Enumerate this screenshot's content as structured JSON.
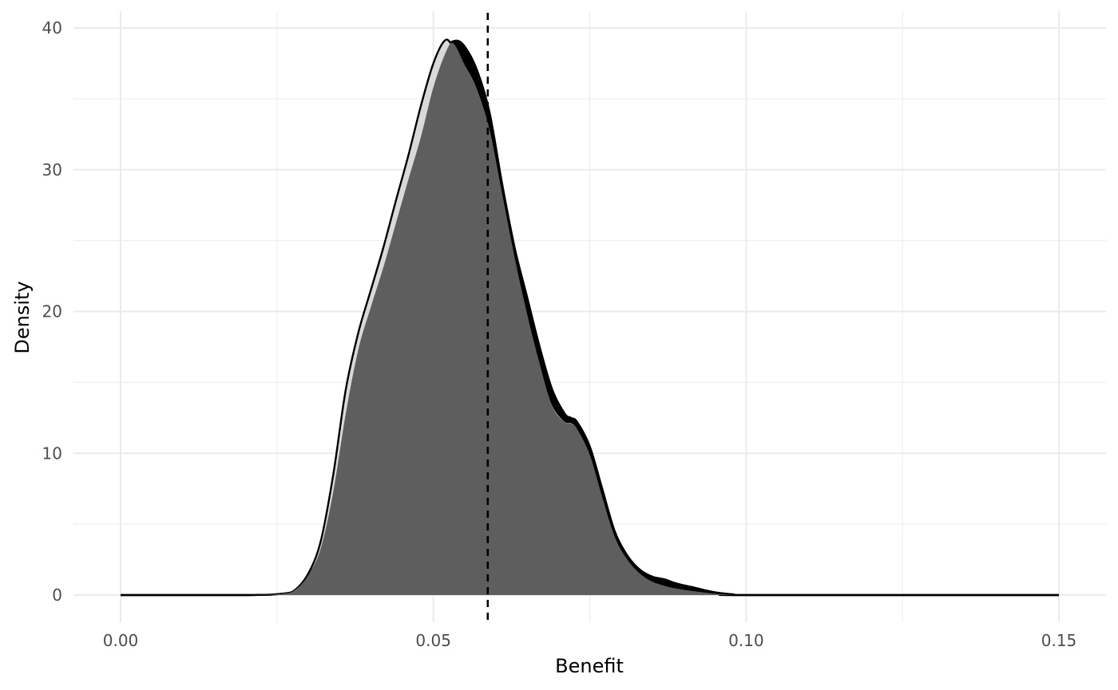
{
  "chart_data": {
    "type": "area",
    "title": "",
    "xlabel": "Benefit",
    "ylabel": "Density",
    "xlim": [
      0,
      0.15
    ],
    "ylim": [
      0,
      40
    ],
    "x_ticks": [
      0.0,
      0.05,
      0.1,
      0.15
    ],
    "x_tick_labels": [
      "0.00",
      "0.05",
      "0.10",
      "0.15"
    ],
    "y_ticks": [
      0,
      10,
      20,
      30,
      40
    ],
    "y_tick_labels": [
      "0",
      "10",
      "20",
      "30",
      "40"
    ],
    "grid": true,
    "reference_line": {
      "x": 0.0587,
      "style": "dashed",
      "color": "#000000"
    },
    "series": [
      {
        "fill": "#000000",
        "outline": "#000000",
        "points": [
          [
            0,
            0
          ],
          [
            0.02,
            0
          ],
          [
            0.026,
            0.1
          ],
          [
            0.028,
            0.4
          ],
          [
            0.03,
            1.5
          ],
          [
            0.032,
            3.5
          ],
          [
            0.034,
            7.5
          ],
          [
            0.036,
            13
          ],
          [
            0.038,
            17.5
          ],
          [
            0.04,
            20.5
          ],
          [
            0.042,
            23.3
          ],
          [
            0.044,
            26.5
          ],
          [
            0.046,
            29.5
          ],
          [
            0.048,
            32.5
          ],
          [
            0.05,
            36
          ],
          [
            0.052,
            38.5
          ],
          [
            0.0535,
            39.1
          ],
          [
            0.055,
            38.7
          ],
          [
            0.057,
            37
          ],
          [
            0.059,
            34
          ],
          [
            0.061,
            29
          ],
          [
            0.063,
            24.5
          ],
          [
            0.065,
            21
          ],
          [
            0.067,
            17.5
          ],
          [
            0.069,
            14.5
          ],
          [
            0.071,
            12.8
          ],
          [
            0.072,
            12.5
          ],
          [
            0.073,
            12.2
          ],
          [
            0.075,
            10.5
          ],
          [
            0.077,
            7.5
          ],
          [
            0.079,
            4.5
          ],
          [
            0.081,
            2.8
          ],
          [
            0.083,
            1.8
          ],
          [
            0.085,
            1.3
          ],
          [
            0.087,
            1.1
          ],
          [
            0.089,
            0.8
          ],
          [
            0.092,
            0.5
          ],
          [
            0.095,
            0.2
          ],
          [
            0.098,
            0.05
          ],
          [
            0.1,
            0
          ],
          [
            0.15,
            0
          ]
        ]
      },
      {
        "fill": "#d9d9d9",
        "outline": "#000000",
        "points": [
          [
            0,
            0
          ],
          [
            0.02,
            0
          ],
          [
            0.026,
            0.1
          ],
          [
            0.028,
            0.4
          ],
          [
            0.03,
            1.5
          ],
          [
            0.032,
            3.8
          ],
          [
            0.034,
            8.5
          ],
          [
            0.036,
            14.5
          ],
          [
            0.038,
            18.5
          ],
          [
            0.04,
            21.5
          ],
          [
            0.042,
            24.5
          ],
          [
            0.044,
            27.8
          ],
          [
            0.046,
            31
          ],
          [
            0.048,
            34.5
          ],
          [
            0.05,
            37.5
          ],
          [
            0.0518,
            39.1
          ],
          [
            0.053,
            38.8
          ],
          [
            0.055,
            37.5
          ],
          [
            0.057,
            35.8
          ],
          [
            0.059,
            33
          ],
          [
            0.061,
            28.5
          ],
          [
            0.063,
            24
          ],
          [
            0.065,
            20
          ],
          [
            0.067,
            16.5
          ],
          [
            0.069,
            13.5
          ],
          [
            0.071,
            12.3
          ],
          [
            0.072,
            12.2
          ],
          [
            0.073,
            11.8
          ],
          [
            0.075,
            10
          ],
          [
            0.077,
            7
          ],
          [
            0.079,
            4.2
          ],
          [
            0.081,
            2.6
          ],
          [
            0.083,
            1.6
          ],
          [
            0.085,
            1.0
          ],
          [
            0.087,
            0.7
          ],
          [
            0.089,
            0.5
          ],
          [
            0.092,
            0.3
          ],
          [
            0.095,
            0.12
          ],
          [
            0.098,
            0.03
          ],
          [
            0.1,
            0
          ],
          [
            0.15,
            0
          ]
        ]
      },
      {
        "fill": "#5e5e5e",
        "outline": "none",
        "points": [
          [
            0,
            0
          ],
          [
            0.02,
            0
          ],
          [
            0.026,
            0.1
          ],
          [
            0.028,
            0.4
          ],
          [
            0.03,
            1.4
          ],
          [
            0.032,
            3.3
          ],
          [
            0.034,
            7.3
          ],
          [
            0.036,
            12.8
          ],
          [
            0.038,
            17.3
          ],
          [
            0.04,
            20.3
          ],
          [
            0.042,
            23.1
          ],
          [
            0.044,
            26.2
          ],
          [
            0.046,
            29.3
          ],
          [
            0.048,
            32.3
          ],
          [
            0.05,
            35.8
          ],
          [
            0.052,
            38.3
          ],
          [
            0.0532,
            38.9
          ],
          [
            0.055,
            37.4
          ],
          [
            0.057,
            35.6
          ],
          [
            0.059,
            32.8
          ],
          [
            0.061,
            28.3
          ],
          [
            0.063,
            23.8
          ],
          [
            0.065,
            19.8
          ],
          [
            0.067,
            16.3
          ],
          [
            0.069,
            13.3
          ],
          [
            0.071,
            12.2
          ],
          [
            0.072,
            12.1
          ],
          [
            0.073,
            11.7
          ],
          [
            0.075,
            9.9
          ],
          [
            0.077,
            6.9
          ],
          [
            0.079,
            4.1
          ],
          [
            0.081,
            2.5
          ],
          [
            0.083,
            1.5
          ],
          [
            0.085,
            0.95
          ],
          [
            0.087,
            0.65
          ],
          [
            0.089,
            0.45
          ],
          [
            0.092,
            0.25
          ],
          [
            0.095,
            0.1
          ],
          [
            0.098,
            0.02
          ],
          [
            0.1,
            0
          ],
          [
            0.15,
            0
          ]
        ]
      }
    ]
  }
}
